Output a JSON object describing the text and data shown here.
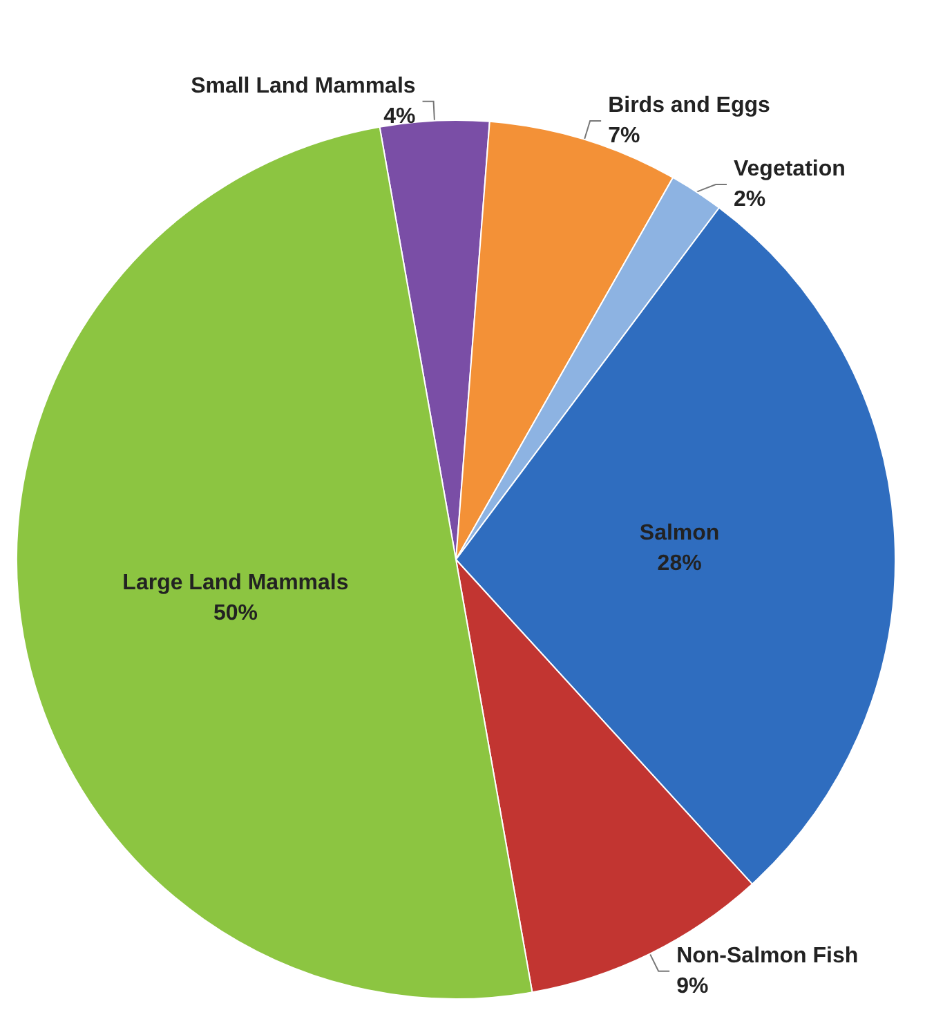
{
  "chart_data": {
    "type": "pie",
    "categories": [
      "Small Land Mammals",
      "Birds and Eggs",
      "Vegetation",
      "Salmon",
      "Non-Salmon Fish",
      "Large Land Mammals"
    ],
    "values": [
      4,
      7,
      2,
      28,
      9,
      50
    ],
    "colors": [
      "#7a4ea6",
      "#f39137",
      "#8db3e2",
      "#2f6dbf",
      "#c23531",
      "#8cc541"
    ],
    "value_labels": [
      "4%",
      "7%",
      "2%",
      "28%",
      "9%",
      "50%"
    ]
  }
}
